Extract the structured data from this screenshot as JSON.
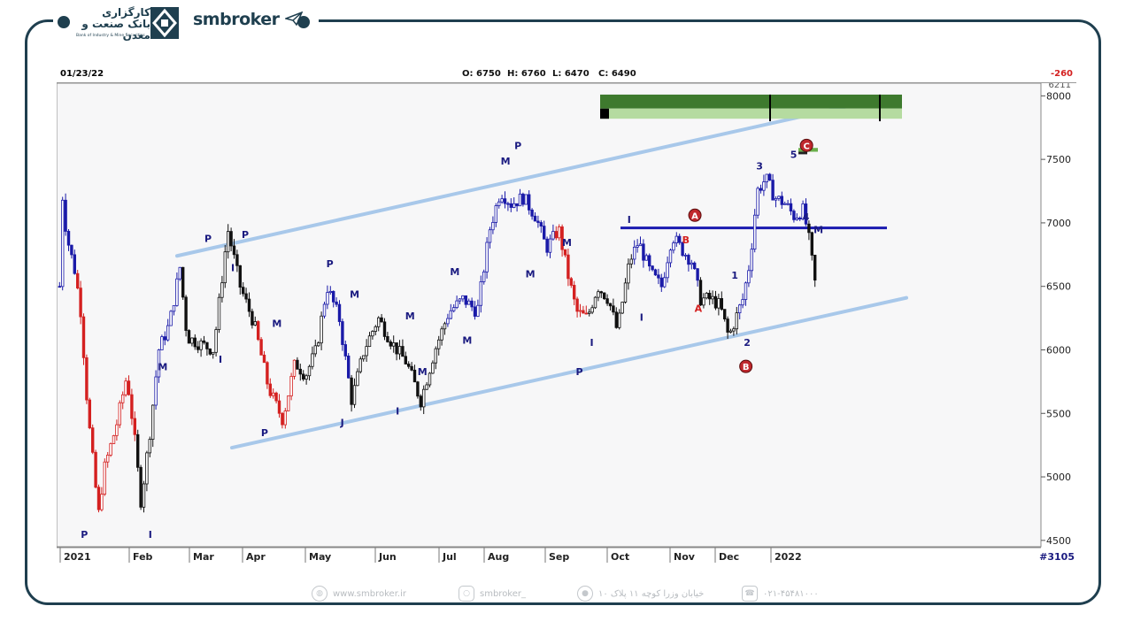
{
  "header": {
    "bank_name_fa": "کارگزاری بانک صنعت و معدن",
    "bank_name_en": "Bank of Industry & Mine Securities",
    "brand": "smbroker"
  },
  "toolbar": {
    "date": "01/23/22",
    "open": "O: 6750",
    "high": "H: 6760",
    "low": "L: 6470",
    "close": "C: 6490",
    "change": "-260",
    "bars": "#3105",
    "last_price": "6211"
  },
  "colors": {
    "blue": "#1a1aa8",
    "red": "#d42020",
    "black": "#111111",
    "channel": "#a8c8ea",
    "resistance": "#1a1ab0",
    "zone_dark": "#3e7a2e",
    "zone_light": "#b5dba0",
    "label_navy": "#1a1a80",
    "label_red": "#d42020"
  },
  "chart_data": {
    "type": "candlestick",
    "y_ticks": [
      "8000",
      "7500",
      "7000",
      "6500",
      "6000",
      "5500",
      "5000",
      "4500"
    ],
    "ylim": [
      4450,
      8100
    ],
    "x_months": [
      "2021",
      "Feb",
      "Mar",
      "Apr",
      "May",
      "Jun",
      "Jul",
      "Aug",
      "Sep",
      "Oct",
      "Nov",
      "Dec",
      "2022"
    ],
    "channel_upper": {
      "from": [
        "Mar",
        6740
      ],
      "to": [
        "2022",
        7920
      ]
    },
    "channel_lower": {
      "from": [
        "Apr",
        5230
      ],
      "to": [
        "2022",
        6410
      ]
    },
    "resistance": {
      "level": 6960,
      "from": "Oct",
      "to": "2022"
    },
    "labels": [
      {
        "t": "P",
        "month": "2021",
        "value": 4520,
        "c": "navy"
      },
      {
        "t": "I",
        "month": "Feb",
        "value": 4520,
        "c": "navy"
      },
      {
        "t": "M",
        "month": "Feb",
        "value": 5840,
        "c": "navy"
      },
      {
        "t": "P",
        "month": "Mar",
        "value": 6850,
        "c": "navy"
      },
      {
        "t": "I",
        "month": "Mar",
        "value": 5900,
        "c": "navy"
      },
      {
        "t": "I",
        "month": "Mar",
        "value": 6620,
        "c": "navy"
      },
      {
        "t": "P",
        "month": "Mar",
        "value": 6880,
        "c": "navy"
      },
      {
        "t": "P",
        "month": "Apr",
        "value": 5320,
        "c": "navy"
      },
      {
        "t": "M",
        "month": "Apr",
        "value": 6180,
        "c": "navy"
      },
      {
        "t": "P",
        "month": "May",
        "value": 6650,
        "c": "navy"
      },
      {
        "t": "J",
        "month": "May",
        "value": 5400,
        "c": "navy"
      },
      {
        "t": "M",
        "month": "May",
        "value": 6410,
        "c": "navy"
      },
      {
        "t": "I",
        "month": "Jun",
        "value": 5490,
        "c": "navy"
      },
      {
        "t": "M",
        "month": "Jun",
        "value": 6240,
        "c": "navy"
      },
      {
        "t": "M",
        "month": "Jun",
        "value": 5800,
        "c": "navy"
      },
      {
        "t": "M",
        "month": "Jul",
        "value": 6590,
        "c": "navy"
      },
      {
        "t": "M",
        "month": "Jul",
        "value": 6050,
        "c": "navy"
      },
      {
        "t": "M",
        "month": "Aug",
        "value": 7460,
        "c": "navy"
      },
      {
        "t": "P",
        "month": "Aug",
        "value": 7580,
        "c": "navy"
      },
      {
        "t": "M",
        "month": "Aug",
        "value": 6570,
        "c": "navy"
      },
      {
        "t": "M",
        "month": "Sep",
        "value": 6820,
        "c": "navy"
      },
      {
        "t": "P",
        "month": "Sep",
        "value": 5800,
        "c": "navy"
      },
      {
        "t": "I",
        "month": "Sep",
        "value": 6030,
        "c": "navy"
      },
      {
        "t": "I",
        "month": "Oct",
        "value": 7000,
        "c": "navy"
      },
      {
        "t": "I",
        "month": "Oct",
        "value": 6230,
        "c": "navy"
      },
      {
        "t": "B",
        "month": "Nov",
        "value": 6840,
        "c": "red"
      },
      {
        "t": "A",
        "month": "Nov",
        "value": 6300,
        "c": "red"
      },
      {
        "t": "1",
        "month": "Dec",
        "value": 6560,
        "c": "navy"
      },
      {
        "t": "2",
        "month": "Dec",
        "value": 6030,
        "c": "navy"
      },
      {
        "t": "3",
        "month": "Dec",
        "value": 7420,
        "c": "navy"
      },
      {
        "t": "5",
        "month": "2022",
        "value": 7510,
        "c": "navy"
      },
      {
        "t": "4",
        "month": "2022",
        "value": 7020,
        "c": "navy"
      },
      {
        "t": "M",
        "month": "2022",
        "value": 6920,
        "c": "navy"
      }
    ],
    "circle_labels": [
      {
        "t": "A",
        "month": "Nov",
        "value": 7060
      },
      {
        "t": "B",
        "month": "Dec",
        "value": 5870
      },
      {
        "t": "C",
        "month": "2022",
        "value": 7610
      }
    ]
  },
  "footer": {
    "website": "www.smbroker.ir",
    "instagram": "smbroker_",
    "address": "خیابان وزرا کوچه ۱۱ پلاک ۱۰",
    "phone": "۰۲۱-۴۵۴۸۱۰۰۰"
  }
}
